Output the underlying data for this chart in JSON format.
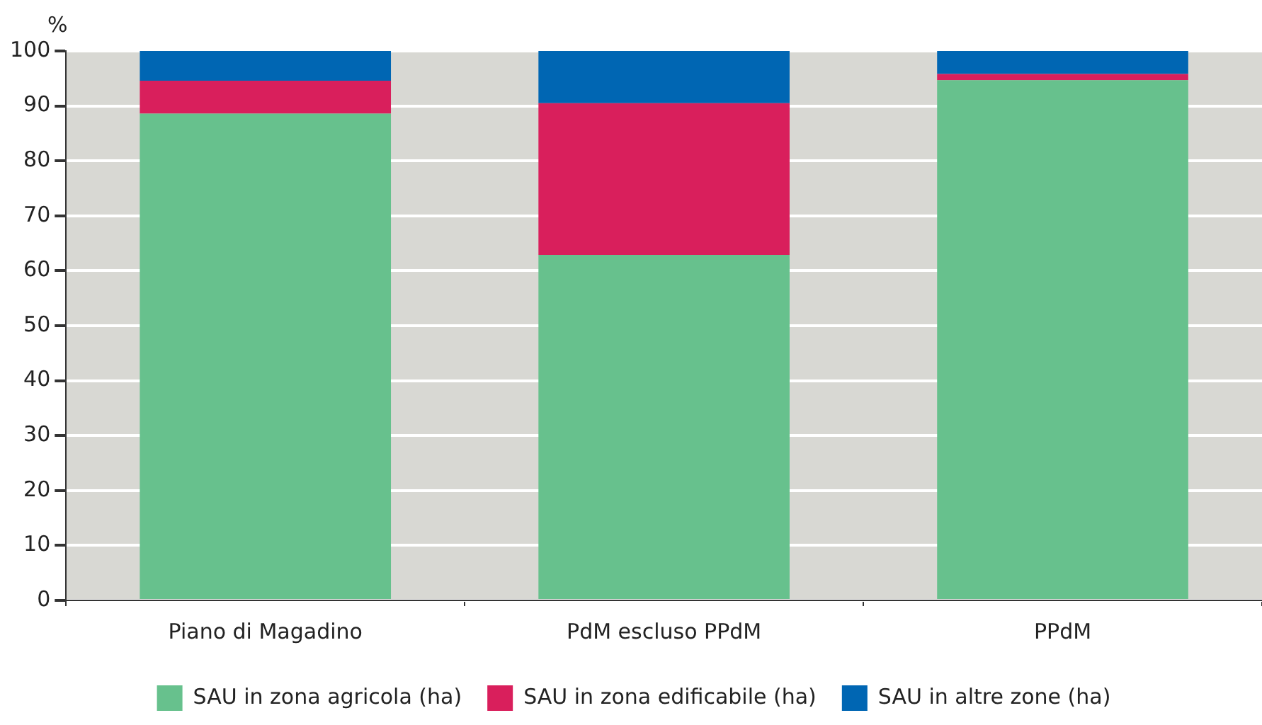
{
  "chart_data": {
    "type": "bar",
    "stacked": true,
    "ylabel": "%",
    "categories": [
      "Piano di Magadino",
      "PdM escluso PPdM",
      "PPdM"
    ],
    "series": [
      {
        "name": "SAU in zona agricola (ha)",
        "color": "#67c18d",
        "values": [
          88.6,
          62.9,
          94.7
        ]
      },
      {
        "name": "SAU in zona edificabile (ha)",
        "color": "#d91f5c",
        "values": [
          6.0,
          27.6,
          1.1
        ]
      },
      {
        "name": "SAU in altre zone (ha)",
        "color": "#0066b3",
        "values": [
          5.4,
          9.5,
          4.2
        ]
      }
    ],
    "ylim": [
      0,
      100
    ],
    "yticks": [
      0,
      10,
      20,
      30,
      40,
      50,
      60,
      70,
      80,
      90,
      100
    ],
    "grid": "y",
    "legend": "bottom"
  }
}
